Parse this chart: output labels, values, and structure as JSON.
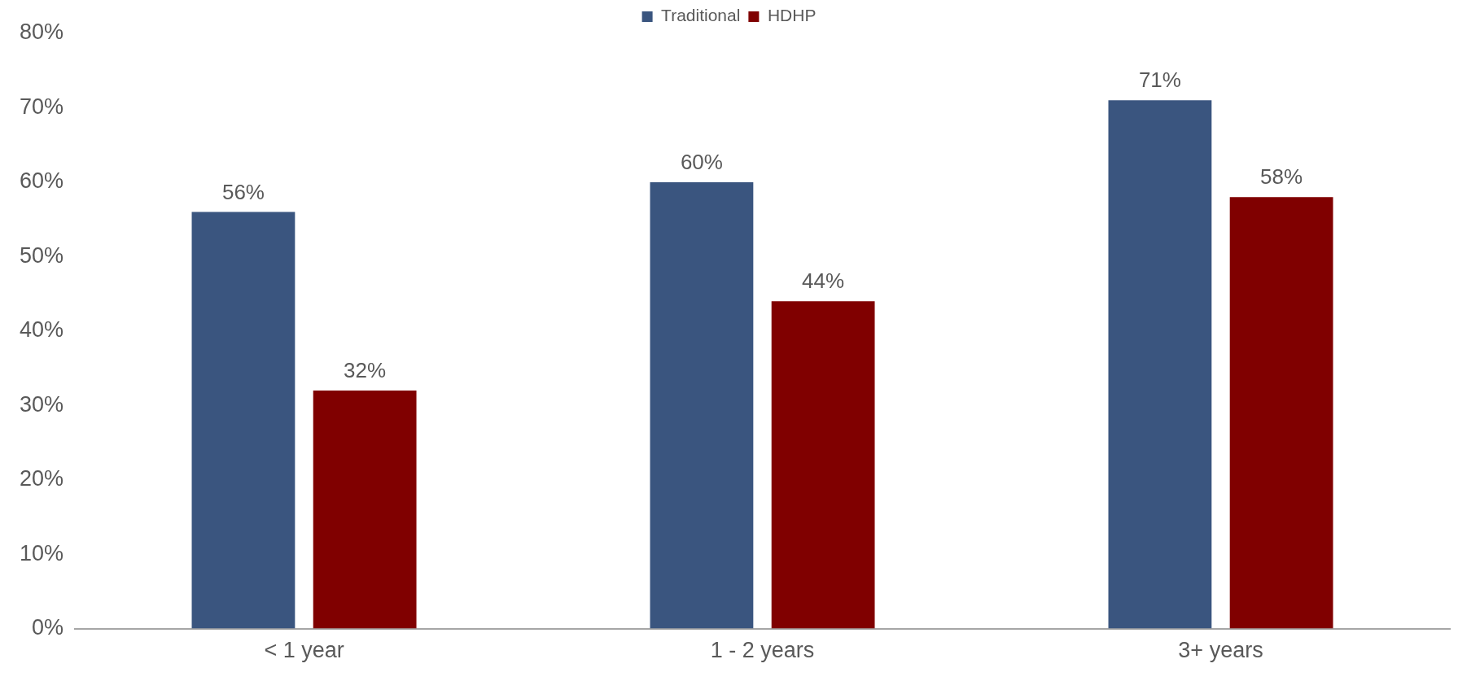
{
  "chart_data": {
    "type": "bar",
    "categories": [
      "< 1 year",
      "1 - 2 years",
      "3+ years"
    ],
    "series": [
      {
        "name": "Traditional",
        "color": "#3a557f",
        "values": [
          56,
          60,
          71
        ],
        "value_labels": [
          "56%",
          "60%",
          "71%"
        ]
      },
      {
        "name": "HDHP",
        "color": "#800000",
        "values": [
          32,
          44,
          58
        ],
        "value_labels": [
          "32%",
          "44%",
          "58%"
        ]
      }
    ],
    "ylim": [
      0,
      80
    ],
    "yticks": [
      {
        "value": 0,
        "label": "0%"
      },
      {
        "value": 10,
        "label": "10%"
      },
      {
        "value": 20,
        "label": "20%"
      },
      {
        "value": 30,
        "label": "30%"
      },
      {
        "value": 40,
        "label": "40%"
      },
      {
        "value": 50,
        "label": "50%"
      },
      {
        "value": 60,
        "label": "60%"
      },
      {
        "value": 70,
        "label": "70%"
      },
      {
        "value": 80,
        "label": "80%"
      }
    ],
    "grid": false,
    "legend": "top"
  }
}
